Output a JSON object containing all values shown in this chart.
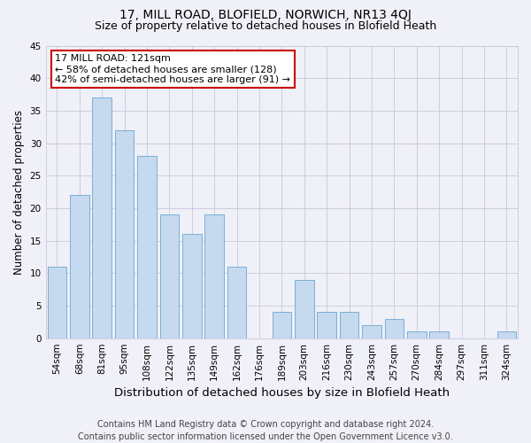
{
  "title1": "17, MILL ROAD, BLOFIELD, NORWICH, NR13 4QJ",
  "title2": "Size of property relative to detached houses in Blofield Heath",
  "xlabel": "Distribution of detached houses by size in Blofield Heath",
  "ylabel": "Number of detached properties",
  "footer": "Contains HM Land Registry data © Crown copyright and database right 2024.\nContains public sector information licensed under the Open Government Licence v3.0.",
  "categories": [
    "54sqm",
    "68sqm",
    "81sqm",
    "95sqm",
    "108sqm",
    "122sqm",
    "135sqm",
    "149sqm",
    "162sqm",
    "176sqm",
    "189sqm",
    "203sqm",
    "216sqm",
    "230sqm",
    "243sqm",
    "257sqm",
    "270sqm",
    "284sqm",
    "297sqm",
    "311sqm",
    "324sqm"
  ],
  "values": [
    11,
    22,
    37,
    32,
    28,
    19,
    16,
    19,
    11,
    0,
    4,
    9,
    4,
    4,
    2,
    3,
    1,
    1,
    0,
    0,
    1
  ],
  "bar_color": "#c5d9ef",
  "bar_edge_color": "#7aafd4",
  "annotation_text": "17 MILL ROAD: 121sqm\n← 58% of detached houses are smaller (128)\n42% of semi-detached houses are larger (91) →",
  "annotation_box_color": "#ffffff",
  "annotation_box_edge_color": "#cc0000",
  "ylim": [
    0,
    45
  ],
  "yticks": [
    0,
    5,
    10,
    15,
    20,
    25,
    30,
    35,
    40,
    45
  ],
  "bg_color": "#f0f0f8",
  "grid_color": "#c8c8dc",
  "title1_fontsize": 10,
  "title2_fontsize": 9,
  "xlabel_fontsize": 9.5,
  "ylabel_fontsize": 8.5,
  "tick_fontsize": 7.5,
  "annotation_fontsize": 8,
  "footer_fontsize": 7
}
